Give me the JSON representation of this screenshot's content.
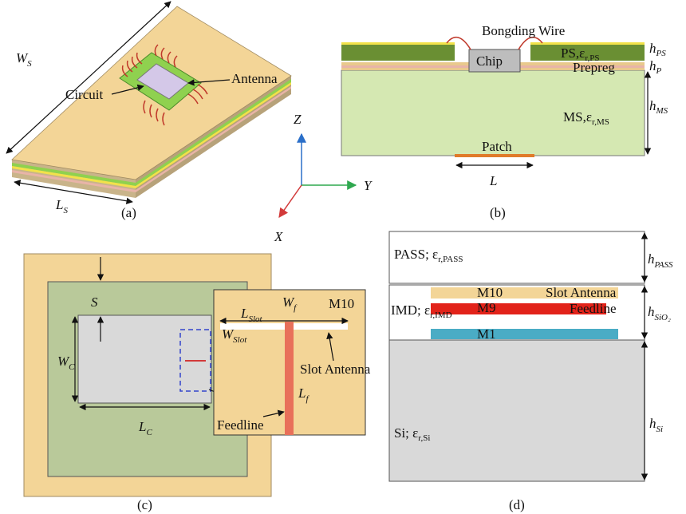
{
  "panel_a": {
    "caption": "(a)",
    "width": {
      "main": "W",
      "sub": "S"
    },
    "length": {
      "main": "L",
      "sub": "S"
    },
    "circuit": "Circuit",
    "antenna": "Antenna"
  },
  "axes": {
    "z": "Z",
    "y": "Y",
    "x": "X"
  },
  "panel_b": {
    "caption": "(b)",
    "wire": "Bongding Wire",
    "chip": "Chip",
    "ps": {
      "main": "PS,ε",
      "sub": "r,PS"
    },
    "h_ps": {
      "main": "h",
      "sub": "PS"
    },
    "prepreg": "Prepreg",
    "h_p": {
      "main": "h",
      "sub": "P"
    },
    "ms": {
      "main": "MS,ε",
      "sub": "r,MS"
    },
    "h_ms": {
      "main": "h",
      "sub": "MS"
    },
    "patch": "Patch",
    "length": "L"
  },
  "panel_c": {
    "caption": "(c)",
    "spacing": "S",
    "wc": {
      "main": "W",
      "sub": "C"
    },
    "lc": {
      "main": "L",
      "sub": "C"
    },
    "l_slot": {
      "main": "L",
      "sub": "Slot"
    },
    "w_f": {
      "main": "W",
      "sub": "f"
    },
    "w_slot": {
      "main": "W",
      "sub": "Slot"
    },
    "m10": "M10",
    "slot_antenna": "Slot Antenna",
    "l_f": {
      "main": "L",
      "sub": "f"
    },
    "feedline": "Feedline"
  },
  "panel_d": {
    "caption": "(d)",
    "pass": {
      "main": "PASS; ε",
      "sub": "r,PASS"
    },
    "h_pass": {
      "main": "h",
      "sub": "PASS"
    },
    "m10": "M10",
    "slot_antenna": "Slot Antenna",
    "imd": {
      "main": "IMD; ε",
      "sub": "r,IMD"
    },
    "m9": "M9",
    "feedline": "Feedline",
    "h_sio2": {
      "main": "h",
      "sub": "SiO₂"
    },
    "m1": "M1",
    "h_si": {
      "main": "h",
      "sub": "Si"
    },
    "si": {
      "main": "Si; ε",
      "sub": "r,Si"
    }
  }
}
